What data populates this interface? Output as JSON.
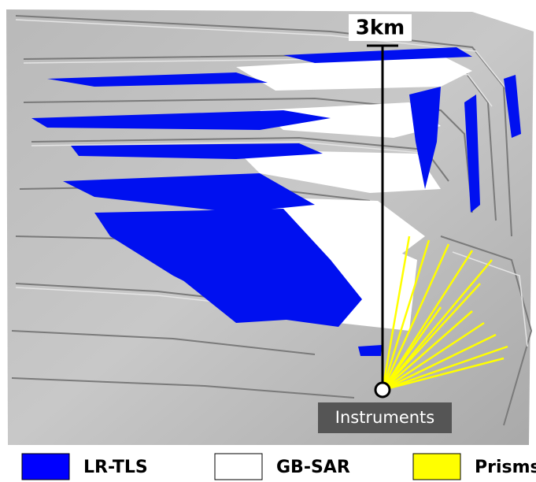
{
  "scale_label": "3km",
  "instrument_label": "Instruments",
  "legend": [
    {
      "label": "LR-TLS",
      "color": "#0000ff"
    },
    {
      "label": "GB-SAR",
      "color": "#ffffff"
    },
    {
      "label": "Prisms",
      "color": "#ffff00"
    }
  ]
}
